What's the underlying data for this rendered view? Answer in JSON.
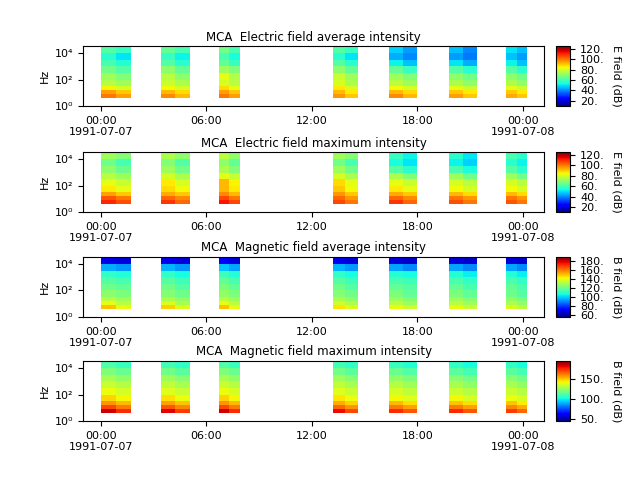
{
  "chart_data": [
    {
      "type": "heatmap",
      "title": "MCA  Electric field average intensity",
      "y_label": "Hz",
      "log": "y",
      "xlim": [
        -1.0,
        25.2
      ],
      "xticks": [
        {
          "value": 0,
          "label": "00:00\n1991-07-07"
        },
        {
          "value": 6,
          "label": "06:00"
        },
        {
          "value": 12,
          "label": "12:00"
        },
        {
          "value": 18,
          "label": "18:00"
        },
        {
          "value": 24,
          "label": "00:00\n1991-07-08"
        }
      ],
      "ylim": [
        1,
        35000
      ],
      "yticks": [
        {
          "value": 1,
          "label": "10⁰"
        },
        {
          "value": 100,
          "label": "10²"
        },
        {
          "value": 10000,
          "label": "10⁴"
        }
      ],
      "time_edges": [
        [
          0.0,
          0.85,
          1.7
        ],
        [
          3.4,
          4.2,
          5.05
        ],
        [
          6.7,
          7.3,
          7.9
        ],
        [
          13.2,
          13.9,
          14.6
        ],
        [
          16.4,
          17.2,
          18.0
        ],
        [
          19.8,
          20.6,
          21.4
        ],
        [
          23.05,
          23.65,
          24.25
        ]
      ],
      "freq_edges": [
        4,
        8,
        16,
        32,
        100,
        316,
        1000,
        3160,
        10000,
        29000
      ],
      "cells": [
        [
          100,
          95,
          98,
          92,
          100,
          95,
          96,
          90,
          98,
          92,
          95,
          90,
          94,
          90
        ],
        [
          95,
          90,
          92,
          88,
          95,
          90,
          92,
          86,
          92,
          88,
          90,
          86,
          90,
          86
        ],
        [
          85,
          80,
          84,
          80,
          88,
          82,
          86,
          80,
          84,
          80,
          82,
          78,
          82,
          78
        ],
        [
          75,
          72,
          78,
          74,
          80,
          76,
          80,
          74,
          76,
          72,
          74,
          70,
          74,
          70
        ],
        [
          72,
          68,
          76,
          70,
          82,
          75,
          78,
          72,
          72,
          68,
          70,
          66,
          70,
          66
        ],
        [
          66,
          62,
          70,
          64,
          72,
          68,
          70,
          64,
          64,
          58,
          62,
          56,
          62,
          56
        ],
        [
          60,
          55,
          62,
          56,
          64,
          58,
          62,
          56,
          52,
          46,
          50,
          44,
          52,
          46
        ],
        [
          56,
          50,
          58,
          52,
          60,
          54,
          56,
          50,
          44,
          40,
          42,
          38,
          46,
          42
        ],
        [
          62,
          58,
          64,
          60,
          66,
          60,
          62,
          58,
          48,
          42,
          46,
          40,
          50,
          46
        ]
      ],
      "colorbar_label": "E field (dB)",
      "colorbar_range": [
        10,
        125
      ],
      "colorbar_ticks": [
        {
          "value": 20,
          "label": "20."
        },
        {
          "value": 40,
          "label": "40."
        },
        {
          "value": 60,
          "label": "60."
        },
        {
          "value": 80,
          "label": "80."
        },
        {
          "value": 100,
          "label": "100."
        },
        {
          "value": 120,
          "label": "120."
        }
      ]
    },
    {
      "type": "heatmap",
      "title": "MCA  Electric field maximum intensity",
      "y_label": "Hz",
      "log": "y",
      "xlim": [
        -1.0,
        25.2
      ],
      "xticks": [
        {
          "value": 0,
          "label": "00:00\n1991-07-07"
        },
        {
          "value": 6,
          "label": "06:00"
        },
        {
          "value": 12,
          "label": "12:00"
        },
        {
          "value": 18,
          "label": "18:00"
        },
        {
          "value": 24,
          "label": "00:00\n1991-07-08"
        }
      ],
      "ylim": [
        1,
        35000
      ],
      "yticks": [
        {
          "value": 1,
          "label": "10⁰"
        },
        {
          "value": 100,
          "label": "10²"
        },
        {
          "value": 10000,
          "label": "10⁴"
        }
      ],
      "time_edges": [
        [
          0.0,
          0.85,
          1.7
        ],
        [
          3.4,
          4.2,
          5.05
        ],
        [
          6.7,
          7.3,
          7.9
        ],
        [
          13.2,
          13.9,
          14.6
        ],
        [
          16.4,
          17.2,
          18.0
        ],
        [
          19.8,
          20.6,
          21.4
        ],
        [
          23.05,
          23.65,
          24.25
        ]
      ],
      "freq_edges": [
        4,
        8,
        16,
        32,
        100,
        316,
        1000,
        3160,
        10000,
        29000
      ],
      "cells": [
        [
          110,
          105,
          108,
          102,
          112,
          106,
          106,
          100,
          108,
          102,
          105,
          100,
          104,
          100
        ],
        [
          104,
          100,
          102,
          98,
          106,
          100,
          102,
          96,
          102,
          98,
          100,
          96,
          100,
          96
        ],
        [
          95,
          90,
          94,
          90,
          98,
          92,
          96,
          90,
          94,
          90,
          92,
          88,
          92,
          88
        ],
        [
          86,
          82,
          88,
          84,
          92,
          86,
          90,
          84,
          86,
          82,
          84,
          80,
          84,
          80
        ],
        [
          82,
          78,
          86,
          80,
          92,
          85,
          88,
          82,
          82,
          78,
          80,
          76,
          80,
          76
        ],
        [
          76,
          72,
          80,
          74,
          82,
          78,
          80,
          74,
          74,
          68,
          72,
          66,
          72,
          66
        ],
        [
          70,
          65,
          72,
          66,
          74,
          68,
          72,
          66,
          62,
          56,
          60,
          54,
          62,
          56
        ],
        [
          66,
          60,
          68,
          62,
          70,
          64,
          66,
          60,
          54,
          50,
          52,
          48,
          56,
          52
        ],
        [
          72,
          68,
          74,
          70,
          76,
          70,
          72,
          68,
          58,
          52,
          56,
          50,
          60,
          56
        ]
      ],
      "colorbar_label": "E field (dB)",
      "colorbar_range": [
        10,
        125
      ],
      "colorbar_ticks": [
        {
          "value": 20,
          "label": "20."
        },
        {
          "value": 40,
          "label": "40."
        },
        {
          "value": 60,
          "label": "60."
        },
        {
          "value": 80,
          "label": "80."
        },
        {
          "value": 100,
          "label": "100."
        },
        {
          "value": 120,
          "label": "120."
        }
      ]
    },
    {
      "type": "heatmap",
      "title": "MCA  Magnetic field average intensity",
      "y_label": "Hz",
      "log": "y",
      "xlim": [
        -1.0,
        25.2
      ],
      "xticks": [
        {
          "value": 0,
          "label": "00:00\n1991-07-07"
        },
        {
          "value": 6,
          "label": "06:00"
        },
        {
          "value": 12,
          "label": "12:00"
        },
        {
          "value": 18,
          "label": "18:00"
        },
        {
          "value": 24,
          "label": "00:00\n1991-07-08"
        }
      ],
      "ylim": [
        1,
        35000
      ],
      "yticks": [
        {
          "value": 1,
          "label": "10⁰"
        },
        {
          "value": 100,
          "label": "10²"
        },
        {
          "value": 10000,
          "label": "10⁴"
        }
      ],
      "time_edges": [
        [
          0.0,
          0.85,
          1.7
        ],
        [
          3.4,
          4.2,
          5.05
        ],
        [
          6.7,
          7.3,
          7.9
        ],
        [
          13.2,
          13.9,
          14.6
        ],
        [
          16.4,
          17.2,
          18.0
        ],
        [
          19.8,
          20.6,
          21.4
        ],
        [
          23.05,
          23.65,
          24.25
        ]
      ],
      "freq_edges": [
        4,
        8,
        16,
        32,
        100,
        316,
        1000,
        3160,
        10000,
        29000
      ],
      "cells": [
        [
          150,
          140,
          148,
          138,
          150,
          140,
          145,
          138,
          140,
          135,
          140,
          135,
          138,
          132
        ],
        [
          140,
          132,
          138,
          130,
          140,
          132,
          136,
          130,
          132,
          128,
          132,
          128,
          130,
          126
        ],
        [
          132,
          128,
          130,
          126,
          132,
          128,
          130,
          126,
          128,
          124,
          128,
          124,
          126,
          122
        ],
        [
          125,
          122,
          124,
          120,
          126,
          122,
          124,
          120,
          122,
          118,
          122,
          118,
          120,
          116
        ],
        [
          120,
          118,
          120,
          116,
          122,
          118,
          120,
          116,
          118,
          116,
          118,
          114,
          118,
          114
        ],
        [
          116,
          114,
          116,
          112,
          118,
          114,
          116,
          112,
          114,
          112,
          114,
          110,
          114,
          110
        ],
        [
          110,
          108,
          110,
          106,
          112,
          108,
          110,
          106,
          108,
          106,
          108,
          104,
          108,
          104
        ],
        [
          95,
          92,
          96,
          92,
          98,
          94,
          96,
          92,
          94,
          90,
          94,
          90,
          94,
          90
        ],
        [
          68,
          66,
          68,
          66,
          70,
          66,
          68,
          66,
          66,
          64,
          66,
          64,
          66,
          64
        ]
      ],
      "colorbar_label": "B field (dB)",
      "colorbar_range": [
        55,
        190
      ],
      "colorbar_ticks": [
        {
          "value": 60,
          "label": "60."
        },
        {
          "value": 80,
          "label": "80."
        },
        {
          "value": 100,
          "label": "100."
        },
        {
          "value": 120,
          "label": "120."
        },
        {
          "value": 140,
          "label": "140."
        },
        {
          "value": 160,
          "label": "160."
        },
        {
          "value": 180,
          "label": "180."
        }
      ]
    },
    {
      "type": "heatmap",
      "title": "MCA  Magnetic field maximum intensity",
      "y_label": "Hz",
      "log": "y",
      "xlim": [
        -1.0,
        25.2
      ],
      "xticks": [
        {
          "value": 0,
          "label": "00:00\n1991-07-07"
        },
        {
          "value": 6,
          "label": "06:00"
        },
        {
          "value": 12,
          "label": "12:00"
        },
        {
          "value": 18,
          "label": "18:00"
        },
        {
          "value": 24,
          "label": "00:00\n1991-07-08"
        }
      ],
      "ylim": [
        1,
        35000
      ],
      "yticks": [
        {
          "value": 1,
          "label": "10⁰"
        },
        {
          "value": 100,
          "label": "10²"
        },
        {
          "value": 10000,
          "label": "10⁴"
        }
      ],
      "time_edges": [
        [
          0.0,
          0.85,
          1.7
        ],
        [
          3.4,
          4.2,
          5.05
        ],
        [
          6.7,
          7.3,
          7.9
        ],
        [
          13.2,
          13.9,
          14.6
        ],
        [
          16.4,
          17.2,
          18.0
        ],
        [
          19.8,
          20.6,
          21.4
        ],
        [
          23.05,
          23.65,
          24.25
        ]
      ],
      "freq_edges": [
        4,
        8,
        16,
        32,
        100,
        316,
        1000,
        3160,
        10000,
        29000
      ],
      "cells": [
        [
          185,
          175,
          182,
          172,
          185,
          175,
          180,
          170,
          175,
          168,
          175,
          168,
          172,
          165
        ],
        [
          170,
          162,
          168,
          160,
          170,
          162,
          165,
          158,
          162,
          156,
          162,
          156,
          160,
          154
        ],
        [
          158,
          152,
          156,
          150,
          158,
          152,
          154,
          148,
          152,
          146,
          150,
          146,
          150,
          144
        ],
        [
          148,
          142,
          146,
          140,
          148,
          142,
          145,
          140,
          142,
          138,
          142,
          136,
          140,
          136
        ],
        [
          140,
          136,
          138,
          134,
          140,
          136,
          138,
          134,
          136,
          132,
          134,
          130,
          134,
          130
        ],
        [
          134,
          130,
          132,
          128,
          134,
          130,
          132,
          128,
          130,
          126,
          128,
          124,
          128,
          124
        ],
        [
          128,
          124,
          126,
          122,
          128,
          124,
          126,
          122,
          124,
          120,
          122,
          118,
          122,
          118
        ],
        [
          120,
          116,
          118,
          114,
          120,
          116,
          118,
          114,
          116,
          112,
          114,
          110,
          114,
          110
        ],
        [
          112,
          108,
          110,
          106,
          112,
          108,
          110,
          106,
          108,
          104,
          106,
          102,
          106,
          102
        ]
      ],
      "colorbar_label": "B field (dB)",
      "colorbar_range": [
        45,
        195
      ],
      "colorbar_ticks": [
        {
          "value": 50,
          "label": "50."
        },
        {
          "value": 100,
          "label": "100."
        },
        {
          "value": 150,
          "label": "150."
        }
      ]
    }
  ]
}
